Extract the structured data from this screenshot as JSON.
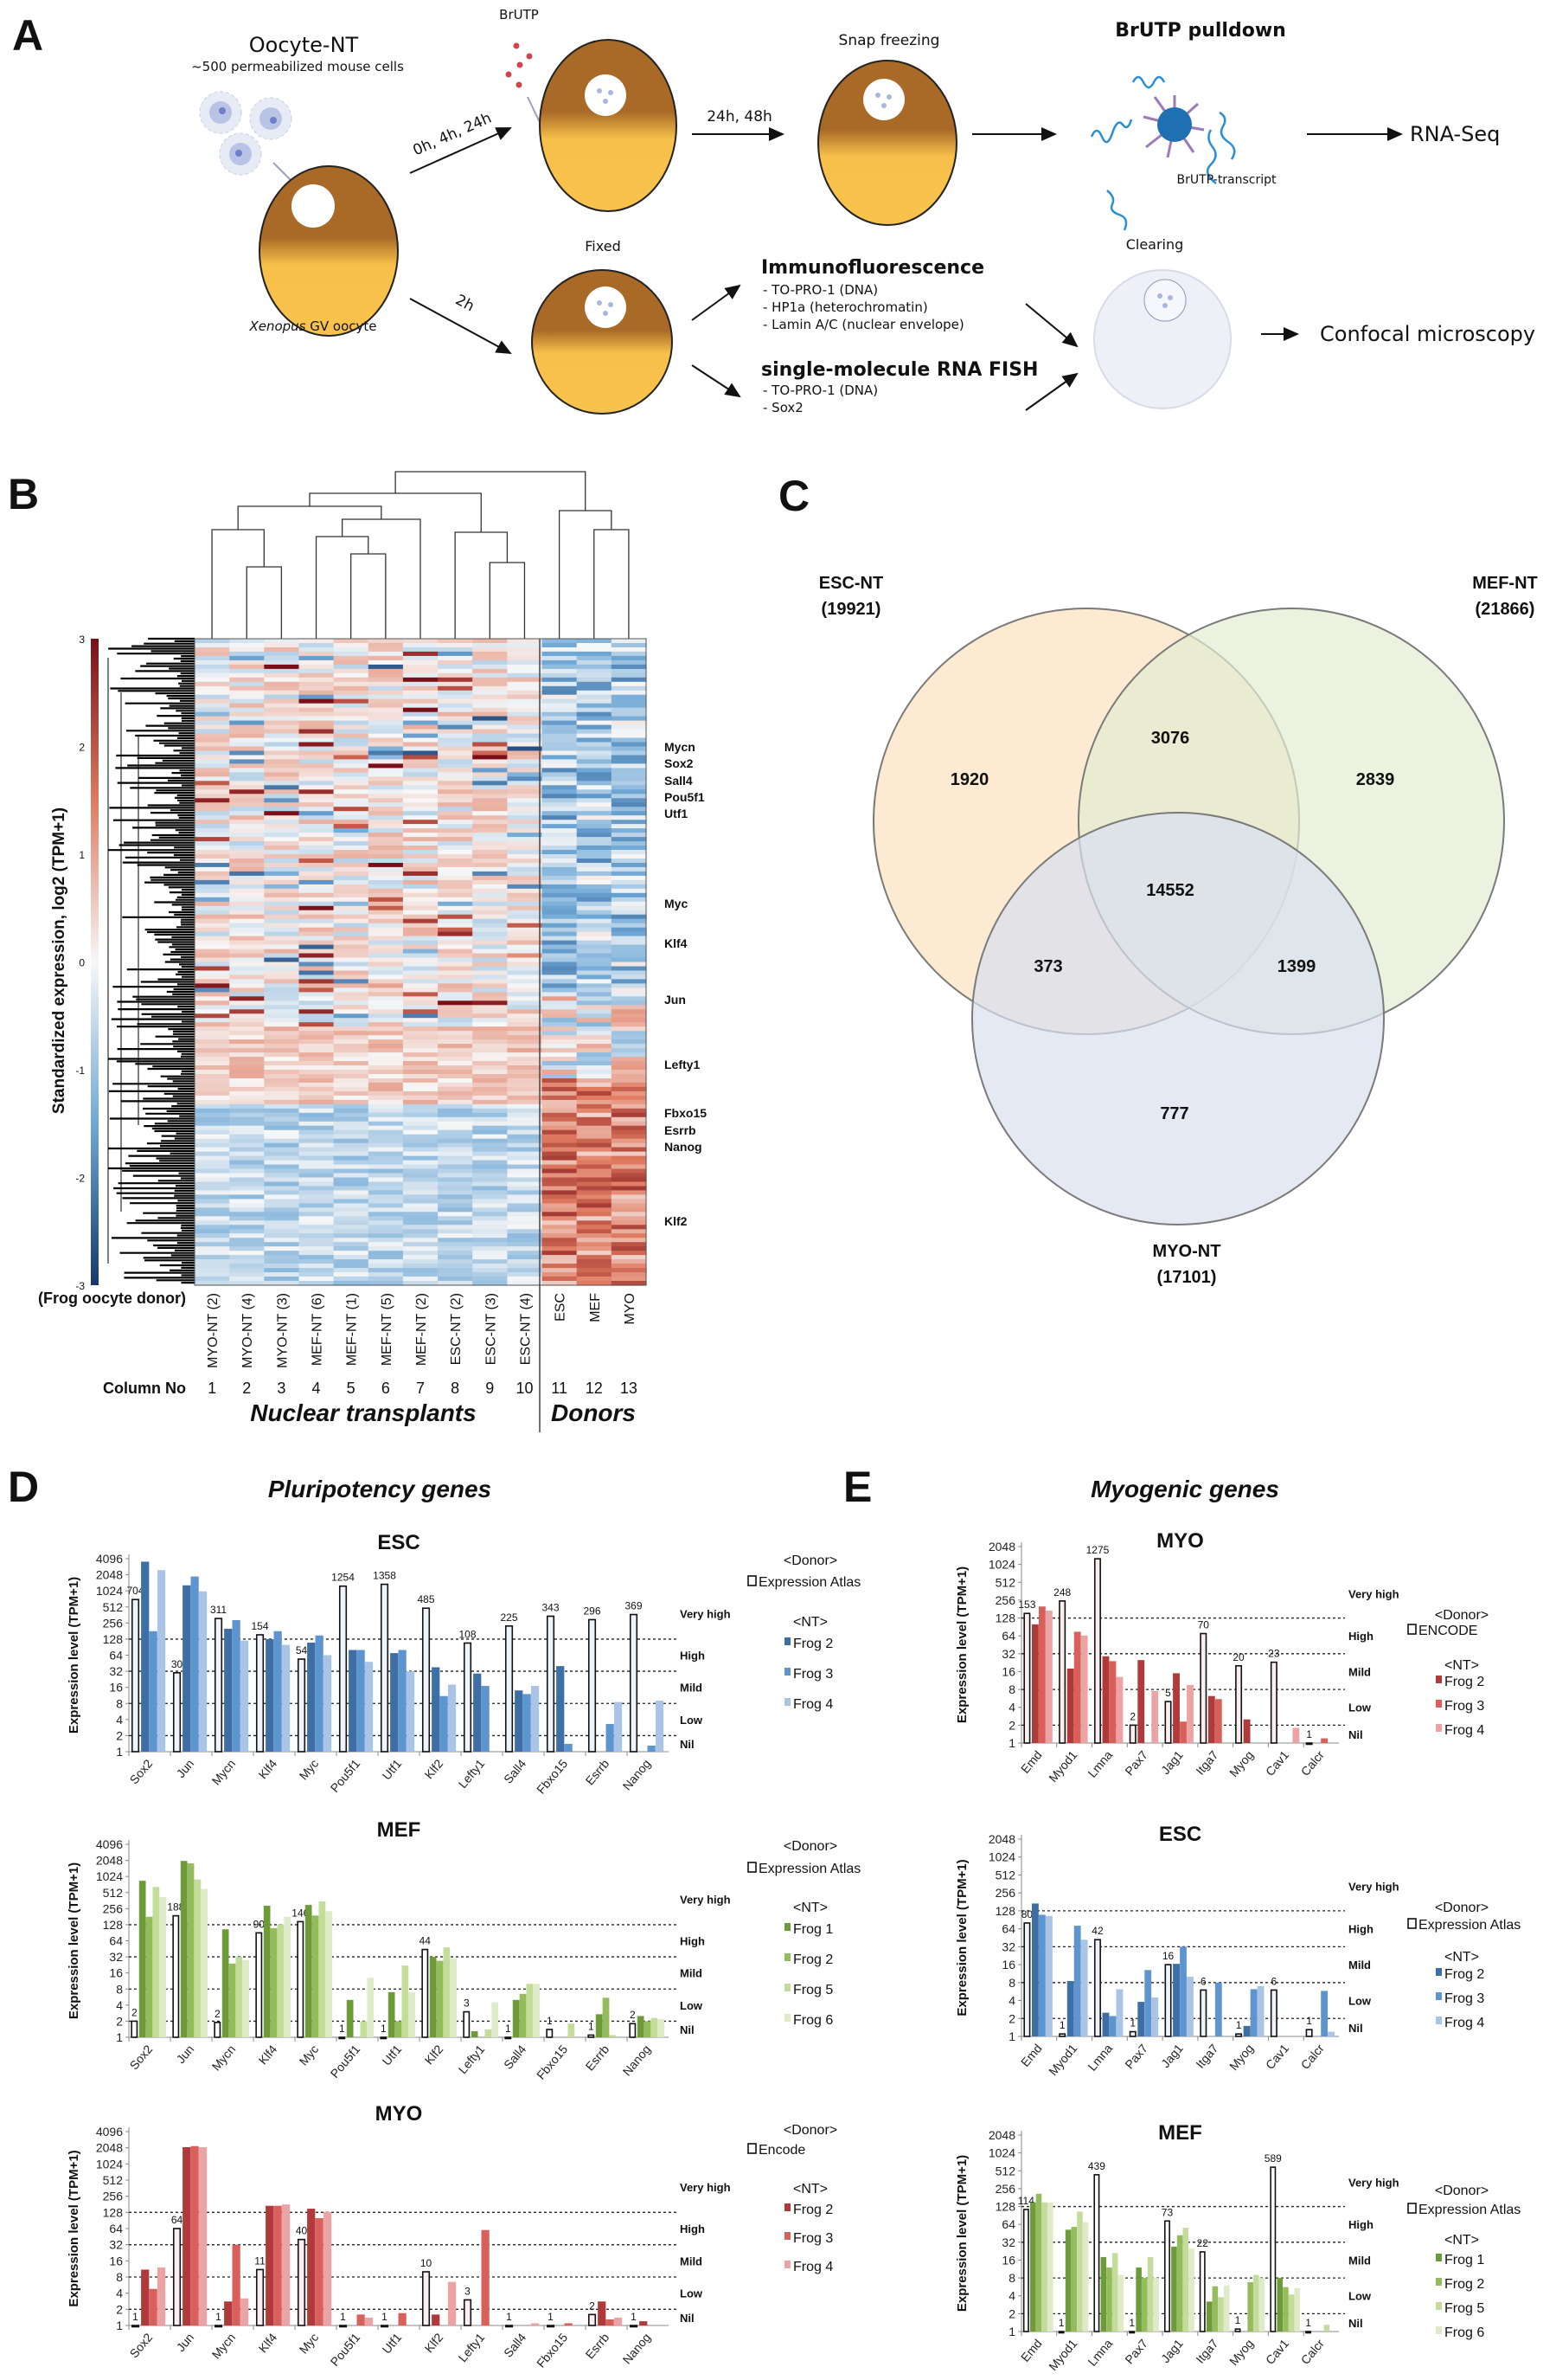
{
  "panels": {
    "a": "A",
    "b": "B",
    "c": "C",
    "d": "D",
    "e": "E"
  },
  "schematic": {
    "title": "Oocyte-NT",
    "cells_label": "~500 permeabilized mouse cells",
    "oocyte_label_italic": "Xenopus",
    "oocyte_label_rest": " GV oocyte",
    "arrow_top": "0h, 4h, 24h",
    "arrow_bottom": "2h",
    "brutp": "BrUTP",
    "arrow_incubate": "24h, 48h",
    "snap_freezing": "Snap freezing",
    "pulldown_title": "BrUTP pulldown",
    "transcript_label": "BrUTP-transcript",
    "rnaseq": "RNA-Seq",
    "fixed": "Fixed",
    "if_title": "Immunofluorescence",
    "if_items": [
      "- TO-PRO-1 (DNA)",
      "- HP1a (heterochromatin)",
      "- Lamin A/C (nuclear envelope)"
    ],
    "fish_title": "single-molecule RNA FISH",
    "fish_items": [
      "- TO-PRO-1 (DNA)",
      "- Sox2"
    ],
    "clearing": "Clearing",
    "confocal": "Confocal microscopy"
  },
  "heatmap": {
    "ylabel": "Standardized expression, log2 (TPM+1)",
    "scale_ticks": [
      "3",
      "2",
      "1",
      "0",
      "-1",
      "-2",
      "-3"
    ],
    "scale_colors": {
      "high": "#9e1b1b",
      "mid": "#f7f7f7",
      "low": "#1f4e8c"
    },
    "row_label": "(Frog oocyte donor)",
    "columns": [
      "MYO-NT (2)",
      "MYO-NT (4)",
      "MYO-NT (3)",
      "MEF-NT (6)",
      "MEF-NT (1)",
      "MEF-NT (5)",
      "MEF-NT (2)",
      "ESC-NT (2)",
      "ESC-NT (3)",
      "ESC-NT (4)",
      "ESC",
      "MEF",
      "MYO"
    ],
    "column_no_label": "Column No",
    "column_numbers": [
      "1",
      "2",
      "3",
      "4",
      "5",
      "6",
      "7",
      "8",
      "9",
      "10",
      "11",
      "12",
      "13"
    ],
    "group_nt": "Nuclear transplants",
    "group_donors": "Donors",
    "genes": [
      "Mycn",
      "Sox2",
      "Sall4",
      "Pou5f1",
      "Utf1",
      "Myc",
      "Klf4",
      "Jun",
      "Lefty1",
      "Fbxo15",
      "Esrrb",
      "Nanog",
      "Klf2"
    ]
  },
  "venn": {
    "esc_title": "ESC-NT",
    "esc_total": "(19921)",
    "mef_title": "MEF-NT",
    "mef_total": "(21866)",
    "myo_title": "MYO-NT",
    "myo_total": "(17101)",
    "esc_only": "1920",
    "mef_only": "2839",
    "myo_only": "777",
    "esc_mef": "3076",
    "esc_myo": "373",
    "mef_myo": "1399",
    "all": "14552",
    "colors": {
      "esc": "#fbe3bf",
      "mef": "#e3ecd2",
      "myo": "#d9dff0"
    }
  },
  "section_d_title": "Pluripotency genes",
  "section_e_title": "Myogenic genes",
  "chart_data": [
    {
      "type": "bar",
      "title": "ESC",
      "ylabel": "Expression level (TPM+1)",
      "yscale": "log2",
      "ylim": [
        1,
        4096
      ],
      "yticks": [
        "1",
        "2",
        "4",
        "8",
        "16",
        "32",
        "64",
        "128",
        "256",
        "512",
        "1024",
        "2048",
        "4096"
      ],
      "thresholds": [
        128,
        32,
        8,
        2
      ],
      "levels": [
        "Very high",
        "High",
        "Mild",
        "Low",
        "Nil"
      ],
      "categories": [
        "Sox2",
        "Jun",
        "Mycn",
        "Klf4",
        "Myc",
        "Pou5f1",
        "Utf1",
        "Klf2",
        "Lefty1",
        "Sall4",
        "Fbxo15",
        "Esrrb",
        "Nanog"
      ],
      "donor_header": "<Donor>",
      "nt_header": "<NT>",
      "donor": {
        "name": "Expression Atlas",
        "color": "#eef3fa",
        "values": [
          704,
          30,
          311,
          154,
          54,
          1254,
          1358,
          485,
          108,
          225,
          343,
          296,
          369
        ],
        "labels": [
          "704",
          "30",
          "311",
          "154",
          "54",
          "1254",
          "1358",
          "485",
          "108",
          "225",
          "343",
          "296",
          "369"
        ]
      },
      "series": [
        {
          "name": "Frog 2",
          "color": "#3d6ea6",
          "values": [
            3600,
            1300,
            200,
            128,
            110,
            80,
            70,
            38,
            29,
            14,
            40,
            1,
            1
          ]
        },
        {
          "name": "Frog 3",
          "color": "#5f95cf",
          "values": [
            180,
            1900,
            290,
            180,
            150,
            80,
            80,
            11,
            17,
            12,
            1.4,
            3.3,
            1.3
          ]
        },
        {
          "name": "Frog 4",
          "color": "#a9c4e4",
          "values": [
            2500,
            1000,
            120,
            100,
            64,
            48,
            32,
            18,
            1,
            17,
            1,
            8.5,
            9
          ]
        }
      ]
    },
    {
      "type": "bar",
      "title": "MEF",
      "ylabel": "Expression level (TPM+1)",
      "yscale": "log2",
      "ylim": [
        1,
        4096
      ],
      "yticks": [
        "1",
        "2",
        "4",
        "8",
        "16",
        "32",
        "64",
        "128",
        "256",
        "512",
        "1024",
        "2048",
        "4096"
      ],
      "thresholds": [
        128,
        32,
        8,
        2
      ],
      "levels": [
        "Very high",
        "High",
        "Mild",
        "Low",
        "Nil"
      ],
      "categories": [
        "Sox2",
        "Jun",
        "Mycn",
        "Klf4",
        "Myc",
        "Pou5f1",
        "Utf1",
        "Klf2",
        "Lefty1",
        "Sall4",
        "Fbxo15",
        "Esrrb",
        "Nanog"
      ],
      "donor_header": "<Donor>",
      "nt_header": "<NT>",
      "donor": {
        "name": "Expression Atlas",
        "color": "#ffffff",
        "values": [
          2,
          188,
          1.9,
          90,
          146,
          1,
          1,
          44,
          3,
          1,
          1.4,
          1.1,
          1.8
        ],
        "labels": [
          "2",
          "188",
          "2",
          "90",
          "146",
          "1",
          "1",
          "44",
          "3",
          "1",
          "1",
          "1",
          "2"
        ]
      },
      "series": [
        {
          "name": "Frog 1",
          "color": "#6e9b3a",
          "values": [
            850,
            2000,
            105,
            290,
            300,
            5,
            7,
            32,
            1.3,
            5,
            1,
            2.7,
            2.5
          ]
        },
        {
          "name": "Frog 2",
          "color": "#94bc5c",
          "values": [
            180,
            1800,
            24,
            110,
            190,
            1,
            2,
            27,
            1,
            6.5,
            1,
            5.5,
            2
          ]
        },
        {
          "name": "Frog 5",
          "color": "#c4dc9b",
          "values": [
            650,
            900,
            32,
            130,
            350,
            2,
            22,
            48,
            1.4,
            10,
            1.8,
            1.1,
            2.3
          ]
        },
        {
          "name": "Frog 6",
          "color": "#dfeac8",
          "values": [
            420,
            600,
            28,
            180,
            230,
            13,
            7,
            30,
            4.5,
            10,
            1,
            1,
            2.2
          ]
        }
      ]
    },
    {
      "type": "bar",
      "title": "MYO",
      "ylabel": "Expression level (TPM+1)",
      "yscale": "log2",
      "ylim": [
        1,
        4096
      ],
      "yticks": [
        "1",
        "2",
        "4",
        "8",
        "16",
        "32",
        "64",
        "128",
        "256",
        "512",
        "1024",
        "2048",
        "4096"
      ],
      "thresholds": [
        128,
        32,
        8,
        2
      ],
      "levels": [
        "Very high",
        "High",
        "Mild",
        "Low",
        "Nil"
      ],
      "categories": [
        "Sox2",
        "Jun",
        "Mycn",
        "Klf4",
        "Myc",
        "Pou5f1",
        "Utf1",
        "Klf2",
        "Lefty1",
        "Sall4",
        "Fbxo15",
        "Esrrb",
        "Nanog"
      ],
      "donor_header": "<Donor>",
      "nt_header": "<NT>",
      "donor": {
        "name": "Encode",
        "color": "#fbeeee",
        "values": [
          1,
          64,
          1,
          11,
          40,
          1,
          1,
          10,
          3,
          1,
          1,
          1.6,
          1
        ],
        "labels": [
          "1",
          "64",
          "1",
          "11",
          "40",
          "1",
          "1",
          "10",
          "3",
          "1",
          "1",
          "2",
          "1"
        ]
      },
      "series": [
        {
          "name": "Frog 2",
          "color": "#b03a3a",
          "values": [
            11,
            2100,
            2.8,
            170,
            150,
            1,
            1,
            1.6,
            1,
            1,
            1,
            2.8,
            1.2
          ]
        },
        {
          "name": "Frog 3",
          "color": "#d9605a",
          "values": [
            4.8,
            2200,
            32,
            170,
            100,
            1.6,
            1.7,
            1,
            60,
            1,
            1.1,
            1.3,
            1
          ]
        },
        {
          "name": "Frog 4",
          "color": "#eba3a3",
          "values": [
            12,
            2100,
            3.2,
            180,
            130,
            1.4,
            1,
            6.5,
            1,
            1.1,
            1,
            1.4,
            1
          ]
        }
      ]
    },
    {
      "type": "bar",
      "title": "MYO",
      "ylabel": "Expression level (TPM+1)",
      "yscale": "log2",
      "ylim": [
        1,
        2048
      ],
      "yticks": [
        "1",
        "2",
        "4",
        "8",
        "16",
        "32",
        "64",
        "128",
        "256",
        "512",
        "1024",
        "2048"
      ],
      "thresholds": [
        128,
        32,
        8,
        2
      ],
      "levels": [
        "Very high",
        "High",
        "Mild",
        "Low",
        "Nil"
      ],
      "categories": [
        "Emd",
        "Myod1",
        "Lmna",
        "Pax7",
        "Jag1",
        "Itga7",
        "Myog",
        "Cav1",
        "Calcr"
      ],
      "donor_header": "<Donor>",
      "nt_header": "<NT>",
      "donor": {
        "name": "ENCODE",
        "color": "#fbeeee",
        "values": [
          153,
          248,
          1275,
          2,
          5,
          70,
          20,
          23,
          1
        ],
        "labels": [
          "153",
          "248",
          "1275",
          "2",
          "5",
          "70",
          "20",
          "23",
          "1"
        ]
      },
      "series": [
        {
          "name": "Frog 2",
          "color": "#b03a3a",
          "values": [
            100,
            18,
            29,
            25,
            15,
            6.2,
            2.5,
            1,
            1
          ]
        },
        {
          "name": "Frog 3",
          "color": "#d9605a",
          "values": [
            200,
            75,
            24,
            1,
            2.3,
            5.5,
            1,
            1,
            1.2
          ]
        },
        {
          "name": "Frog 4",
          "color": "#eba3a3",
          "values": [
            170,
            65,
            13,
            7.5,
            9.5,
            1,
            1,
            1.8,
            1
          ]
        }
      ]
    },
    {
      "type": "bar",
      "title": "ESC",
      "ylabel": "Expression level (TPM+1)",
      "yscale": "log2",
      "ylim": [
        1,
        2048
      ],
      "yticks": [
        "1",
        "2",
        "4",
        "8",
        "16",
        "32",
        "64",
        "128",
        "256",
        "512",
        "1024",
        "2048"
      ],
      "thresholds": [
        128,
        32,
        8,
        2
      ],
      "levels": [
        "Very high",
        "High",
        "Mild",
        "Low",
        "Nil"
      ],
      "categories": [
        "Emd",
        "Myod1",
        "Lmna",
        "Pax7",
        "Jag1",
        "Itga7",
        "Myog",
        "Cav1",
        "Calcr"
      ],
      "donor_header": "<Donor>",
      "nt_header": "<NT>",
      "donor": {
        "name": "Expression Atlas",
        "color": "#eef3fa",
        "values": [
          80,
          1.1,
          42,
          1.2,
          16,
          6,
          1.1,
          6,
          1.3
        ],
        "labels": [
          "80",
          "1",
          "42",
          "1",
          "16",
          "6",
          "1",
          "6",
          "1"
        ]
      },
      "series": [
        {
          "name": "Frog 2",
          "color": "#3d6ea6",
          "values": [
            170,
            8.5,
            2.5,
            3.8,
            16.5,
            1,
            1.5,
            1,
            1
          ]
        },
        {
          "name": "Frog 3",
          "color": "#5f95cf",
          "values": [
            110,
            72,
            2.2,
            13,
            32,
            8,
            6.2,
            1,
            5.8
          ]
        },
        {
          "name": "Frog 4",
          "color": "#a9c4e4",
          "values": [
            105,
            42,
            6.2,
            4.5,
            10,
            1,
            7,
            1,
            1.2
          ]
        }
      ]
    },
    {
      "type": "bar",
      "title": "MEF",
      "ylabel": "Expression level (TPM+1)",
      "yscale": "log2",
      "ylim": [
        1,
        2048
      ],
      "yticks": [
        "1",
        "2",
        "4",
        "8",
        "16",
        "32",
        "64",
        "128",
        "256",
        "512",
        "1024",
        "2048"
      ],
      "thresholds": [
        128,
        32,
        8,
        2
      ],
      "levels": [
        "Very high",
        "High",
        "Mild",
        "Low",
        "Nil"
      ],
      "categories": [
        "Emd",
        "Myod1",
        "Lmna",
        "Pax7",
        "Jag1",
        "Itga7",
        "Myog",
        "Cav1",
        "Calcr"
      ],
      "donor_header": "<Donor>",
      "nt_header": "<NT>",
      "donor": {
        "name": "Expression Atlas",
        "color": "#ffffff",
        "values": [
          114,
          1,
          439,
          1,
          73,
          22,
          1.1,
          589,
          1
        ],
        "labels": [
          "114",
          "1",
          "439",
          "1",
          "73",
          "22",
          "1",
          "589",
          "1"
        ]
      },
      "series": [
        {
          "name": "Frog 1",
          "color": "#6e9b3a",
          "values": [
            150,
            52,
            18,
            12,
            27,
            3.2,
            1,
            8,
            1
          ]
        },
        {
          "name": "Frog 2",
          "color": "#94bc5c",
          "values": [
            210,
            58,
            12,
            8,
            42,
            5.8,
            6.8,
            5.6,
            1
          ]
        },
        {
          "name": "Frog 5",
          "color": "#c4dc9b",
          "values": [
            150,
            105,
            21,
            18,
            56,
            3.8,
            9,
            4.2,
            1.3
          ]
        },
        {
          "name": "Frog 6",
          "color": "#dfeac8",
          "values": [
            150,
            70,
            9,
            8,
            25,
            6,
            8,
            5.4,
            1
          ]
        }
      ]
    }
  ]
}
